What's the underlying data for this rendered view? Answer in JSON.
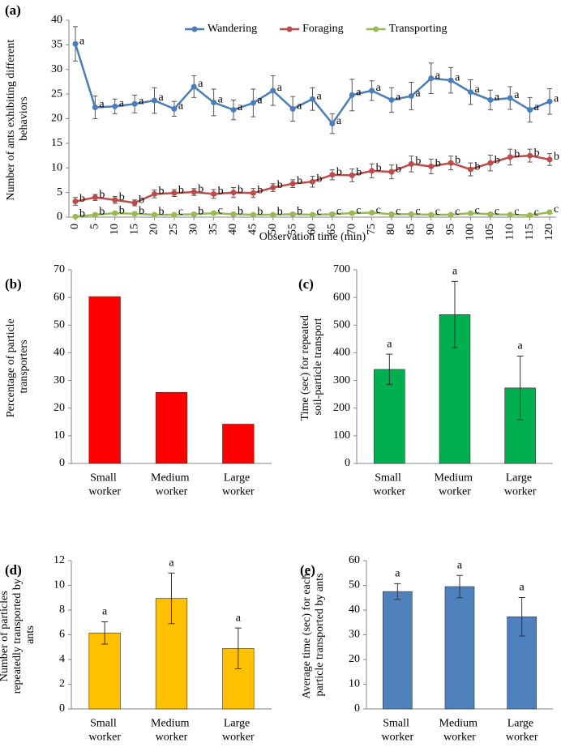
{
  "chart_data": [
    {
      "type": "line",
      "panel_label": "(a)",
      "ylabel": "Number of ants exhibiting different behaviors",
      "xlabel": "Observation time (min)",
      "x": [
        0,
        5,
        10,
        15,
        20,
        25,
        30,
        35,
        40,
        45,
        50,
        55,
        60,
        65,
        70,
        75,
        80,
        85,
        90,
        95,
        100,
        105,
        110,
        115,
        120
      ],
      "xlim": [
        0,
        120
      ],
      "xticks": [
        0,
        5,
        10,
        15,
        20,
        25,
        30,
        35,
        40,
        45,
        50,
        55,
        60,
        65,
        70,
        75,
        80,
        85,
        90,
        95,
        100,
        105,
        110,
        115,
        120
      ],
      "ylim": [
        0,
        40
      ],
      "yticks": [
        0,
        5,
        10,
        15,
        20,
        25,
        30,
        35,
        40
      ],
      "series": [
        {
          "name": "Wandering",
          "color": "#4a7ebb",
          "values": [
            35.2,
            22.3,
            22.5,
            23,
            23.7,
            22,
            26.5,
            23.3,
            21.8,
            23.2,
            25.7,
            22,
            24,
            19,
            24.8,
            25.7,
            23.8,
            24.6,
            28.2,
            27.8,
            25.4,
            23.8,
            24.2,
            21.8,
            23.5
          ],
          "errors": [
            3.5,
            2.3,
            1.5,
            1.8,
            2.6,
            1.5,
            2.2,
            2.7,
            2,
            2.8,
            3,
            2.5,
            2.3,
            2,
            3.2,
            2,
            2.5,
            2.8,
            3.1,
            2.6,
            2.5,
            2,
            2.3,
            2.5,
            2.6
          ],
          "labels": [
            "a",
            "a",
            "a",
            "a",
            "a",
            "a",
            "a",
            "a",
            "a",
            "a",
            "a",
            "a",
            "a",
            "a",
            "a",
            "a",
            "a",
            "a",
            "a",
            "a",
            "a",
            "a",
            "a",
            "a",
            "a"
          ]
        },
        {
          "name": "Foraging",
          "color": "#be4b48",
          "values": [
            3.2,
            4,
            3.5,
            2.9,
            4.7,
            4.9,
            5.1,
            4.7,
            5,
            4.9,
            6,
            6.8,
            7.2,
            8.6,
            8.5,
            9.4,
            9.2,
            10.8,
            10.3,
            11,
            9.7,
            11,
            12.2,
            12.5,
            11.7
          ],
          "errors": [
            0.8,
            0.6,
            0.7,
            0.6,
            0.8,
            0.7,
            0.7,
            0.9,
            1,
            0.9,
            0.8,
            0.8,
            1.1,
            1,
            1.3,
            1.4,
            1.4,
            1.6,
            1.5,
            1.4,
            1.3,
            1.6,
            1.6,
            1.3,
            1.2
          ],
          "labels": [
            "b",
            "b",
            "b",
            "b",
            "b",
            "b",
            "b",
            "b",
            "b",
            "b",
            "b",
            "b",
            "b",
            "b",
            "b",
            "b",
            "b",
            "b",
            "b",
            "b",
            "b",
            "b",
            "b",
            "b",
            "b"
          ]
        },
        {
          "name": "Transporting",
          "color": "#98b954",
          "values": [
            0.1,
            0.5,
            0.8,
            0.7,
            0.5,
            0.5,
            0.6,
            0.8,
            0.6,
            0.5,
            0.5,
            0.6,
            0.5,
            0.6,
            0.8,
            0.9,
            0.6,
            0.6,
            0.5,
            0.5,
            0.8,
            0.6,
            0.5,
            0.4,
            1
          ],
          "errors": [
            0.2,
            0.3,
            0.3,
            0.3,
            0.2,
            0.2,
            0.3,
            0.3,
            0.3,
            0.2,
            0.2,
            0.3,
            0.2,
            0.3,
            0.3,
            0.3,
            0.3,
            0.2,
            0.2,
            0.2,
            0.3,
            0.3,
            0.2,
            0.2,
            0.3
          ],
          "labels": [
            "b",
            "b",
            "b",
            "b",
            "b",
            "c",
            "b",
            "c",
            "b",
            "b",
            "b",
            "b",
            "c",
            "c",
            "c",
            "c",
            "c",
            "c",
            "c",
            "c",
            "c",
            "c",
            "c",
            "c",
            "c"
          ]
        }
      ]
    },
    {
      "type": "bar",
      "panel_label": "(b)",
      "ylabel": "Percentage of particle transporters",
      "categories": [
        "Small worker",
        "Medium worker",
        "Large worker"
      ],
      "values": [
        60.3,
        25.7,
        14.2
      ],
      "color": "#ff0000",
      "ylim": [
        0,
        70
      ],
      "yticks": [
        0,
        10,
        20,
        30,
        40,
        50,
        60,
        70
      ]
    },
    {
      "type": "bar",
      "panel_label": "(c)",
      "ylabel": "Time (sec) for repeated soil-particle transport",
      "categories": [
        "Small worker",
        "Medium worker",
        "Large worker"
      ],
      "values": [
        340,
        538,
        273
      ],
      "errors": [
        55,
        120,
        115
      ],
      "labels": [
        "a",
        "a",
        "a"
      ],
      "color": "#00b050",
      "ylim": [
        0,
        700
      ],
      "yticks": [
        0,
        100,
        200,
        300,
        400,
        500,
        600,
        700
      ]
    },
    {
      "type": "bar",
      "panel_label": "(d)",
      "ylabel": "Number of particles repeatedly transported by ants",
      "categories": [
        "Small worker",
        "Medium worker",
        "Large worker"
      ],
      "values": [
        6.15,
        8.95,
        4.9
      ],
      "errors": [
        0.9,
        2.05,
        1.65
      ],
      "labels": [
        "a",
        "a",
        "a"
      ],
      "color": "#ffc000",
      "ylim": [
        0,
        12
      ],
      "yticks": [
        0,
        2,
        4,
        6,
        8,
        10,
        12
      ]
    },
    {
      "type": "bar",
      "panel_label": "(e)",
      "ylabel": "Average time (sec) for each particle transported by ants",
      "categories": [
        "Small worker",
        "Medium worker",
        "Large worker"
      ],
      "values": [
        47.5,
        49.5,
        37.3
      ],
      "errors": [
        3.2,
        4.5,
        7.8
      ],
      "labels": [
        "a",
        "a",
        "a"
      ],
      "color": "#4f81bd",
      "ylim": [
        0,
        60
      ],
      "yticks": [
        0,
        10,
        20,
        30,
        40,
        50,
        60
      ]
    }
  ]
}
